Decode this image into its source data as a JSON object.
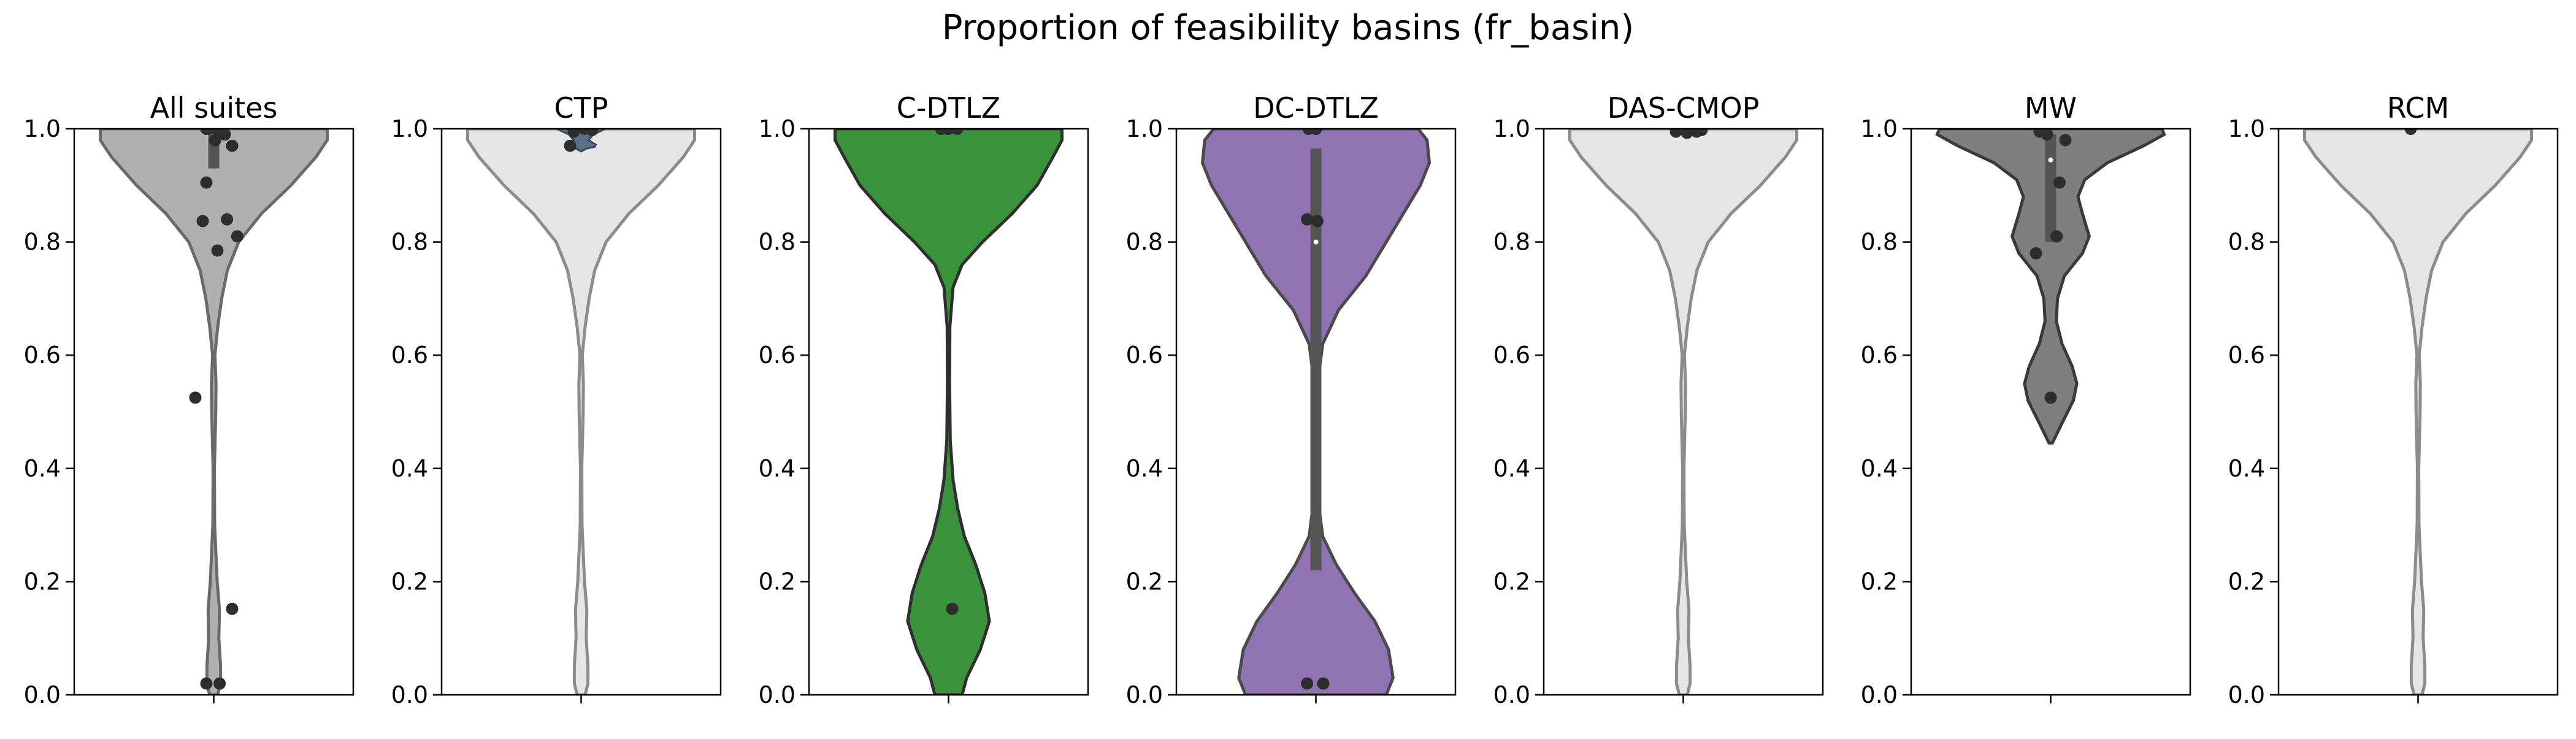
{
  "figure_title": "Proportion of feasibility basins (fr_basin)",
  "chart_data": {
    "type": "violin",
    "y_range": [
      0,
      1
    ],
    "y_ticks": [
      "0.0",
      "0.2",
      "0.4",
      "0.6",
      "0.8",
      "1.0"
    ],
    "panels": [
      {
        "title": "All suites",
        "color": "#b0b0b0",
        "edge": "#6a6a6a",
        "dim": false,
        "shape": [
          [
            0.0,
            0.035
          ],
          [
            0.02,
            0.06
          ],
          [
            0.05,
            0.06
          ],
          [
            0.1,
            0.045
          ],
          [
            0.15,
            0.05
          ],
          [
            0.2,
            0.03
          ],
          [
            0.3,
            0.008
          ],
          [
            0.4,
            0.006
          ],
          [
            0.5,
            0.018
          ],
          [
            0.55,
            0.02
          ],
          [
            0.6,
            0.01
          ],
          [
            0.65,
            0.035
          ],
          [
            0.7,
            0.07
          ],
          [
            0.75,
            0.12
          ],
          [
            0.8,
            0.22
          ],
          [
            0.85,
            0.42
          ],
          [
            0.9,
            0.68
          ],
          [
            0.95,
            0.9
          ],
          [
            0.98,
            1.0
          ],
          [
            1.0,
            1.0
          ]
        ],
        "box": {
          "q1": 0.93,
          "q3": 1.0,
          "median": 0.99
        },
        "points": [
          [
            -0.05,
            1.0
          ],
          [
            0.05,
            1.0
          ],
          [
            0.12,
            1.0
          ],
          [
            -0.1,
            1.0
          ],
          [
            0.15,
            0.99
          ],
          [
            0.02,
            0.98
          ],
          [
            0.25,
            0.97
          ],
          [
            -0.1,
            0.905
          ],
          [
            0.18,
            0.84
          ],
          [
            -0.15,
            0.837
          ],
          [
            0.32,
            0.81
          ],
          [
            0.05,
            0.785
          ],
          [
            -0.25,
            0.525
          ],
          [
            0.25,
            0.152
          ],
          [
            -0.1,
            0.02
          ],
          [
            0.08,
            0.02
          ]
        ]
      },
      {
        "title": "CTP",
        "color": "#e5e5e5",
        "edge": "#8c8c8c",
        "dim": true,
        "shape": [
          [
            0.0,
            0.035
          ],
          [
            0.02,
            0.06
          ],
          [
            0.05,
            0.06
          ],
          [
            0.1,
            0.045
          ],
          [
            0.15,
            0.05
          ],
          [
            0.2,
            0.03
          ],
          [
            0.3,
            0.008
          ],
          [
            0.4,
            0.006
          ],
          [
            0.5,
            0.018
          ],
          [
            0.55,
            0.02
          ],
          [
            0.6,
            0.01
          ],
          [
            0.65,
            0.035
          ],
          [
            0.7,
            0.07
          ],
          [
            0.75,
            0.12
          ],
          [
            0.8,
            0.22
          ],
          [
            0.85,
            0.42
          ],
          [
            0.9,
            0.68
          ],
          [
            0.95,
            0.9
          ],
          [
            0.98,
            1.0
          ],
          [
            1.0,
            1.0
          ]
        ],
        "inner": [
          [
            0.96,
            0.0
          ],
          [
            0.965,
            0.22
          ],
          [
            0.968,
            0.55
          ],
          [
            0.972,
            0.6
          ],
          [
            0.98,
            0.3
          ],
          [
            0.99,
            0.5
          ],
          [
            1.0,
            1.0
          ]
        ],
        "box": {
          "q1": 0.995,
          "q3": 1.0,
          "median": 0.998
        },
        "points": [
          [
            -0.1,
            0.995
          ],
          [
            0.05,
            1.0
          ],
          [
            -0.15,
            0.97
          ],
          [
            0.15,
            0.998
          ]
        ]
      },
      {
        "title": "C-DTLZ",
        "color": "#3a923a",
        "edge": "#2f2f2f",
        "dim": false,
        "shape": [
          [
            0.0,
            0.12
          ],
          [
            0.03,
            0.16
          ],
          [
            0.08,
            0.28
          ],
          [
            0.13,
            0.36
          ],
          [
            0.18,
            0.32
          ],
          [
            0.23,
            0.24
          ],
          [
            0.28,
            0.14
          ],
          [
            0.33,
            0.08
          ],
          [
            0.38,
            0.04
          ],
          [
            0.45,
            0.015
          ],
          [
            0.55,
            0.01
          ],
          [
            0.65,
            0.012
          ],
          [
            0.72,
            0.04
          ],
          [
            0.76,
            0.12
          ],
          [
            0.8,
            0.3
          ],
          [
            0.85,
            0.56
          ],
          [
            0.9,
            0.78
          ],
          [
            0.95,
            0.92
          ],
          [
            0.98,
            1.0
          ],
          [
            1.0,
            1.0
          ]
        ],
        "box": {
          "q1": 0.99,
          "q3": 1.0,
          "median": 1.0
        },
        "points": [
          [
            0.05,
            0.152
          ],
          [
            0.0,
            1.0
          ],
          [
            0.12,
            1.0
          ],
          [
            -0.1,
            1.0
          ]
        ]
      },
      {
        "title": "DC-DTLZ",
        "color": "#9172b2",
        "edge": "#4a4a4a",
        "dim": false,
        "shape": [
          [
            0.0,
            0.62
          ],
          [
            0.03,
            0.68
          ],
          [
            0.08,
            0.64
          ],
          [
            0.13,
            0.52
          ],
          [
            0.18,
            0.34
          ],
          [
            0.23,
            0.18
          ],
          [
            0.28,
            0.06
          ],
          [
            0.35,
            0.015
          ],
          [
            0.45,
            0.01
          ],
          [
            0.55,
            0.015
          ],
          [
            0.62,
            0.06
          ],
          [
            0.68,
            0.2
          ],
          [
            0.74,
            0.44
          ],
          [
            0.8,
            0.62
          ],
          [
            0.86,
            0.8
          ],
          [
            0.9,
            0.92
          ],
          [
            0.94,
            1.0
          ],
          [
            0.98,
            0.98
          ],
          [
            1.0,
            0.9
          ]
        ],
        "box": {
          "q1": 0.22,
          "q3": 0.965,
          "median": 0.8
        },
        "points": [
          [
            -0.12,
            0.02
          ],
          [
            0.1,
            0.02
          ],
          [
            -0.12,
            0.84
          ],
          [
            0.02,
            0.837
          ],
          [
            0.0,
            1.0
          ],
          [
            -0.1,
            1.0
          ]
        ]
      },
      {
        "title": "DAS-CMOP",
        "color": "#e5e5e5",
        "edge": "#8c8c8c",
        "dim": true,
        "shape": [
          [
            0.0,
            0.035
          ],
          [
            0.02,
            0.06
          ],
          [
            0.05,
            0.06
          ],
          [
            0.1,
            0.045
          ],
          [
            0.15,
            0.05
          ],
          [
            0.2,
            0.03
          ],
          [
            0.3,
            0.008
          ],
          [
            0.4,
            0.006
          ],
          [
            0.5,
            0.018
          ],
          [
            0.55,
            0.02
          ],
          [
            0.6,
            0.01
          ],
          [
            0.65,
            0.035
          ],
          [
            0.7,
            0.07
          ],
          [
            0.75,
            0.12
          ],
          [
            0.8,
            0.22
          ],
          [
            0.85,
            0.42
          ],
          [
            0.9,
            0.68
          ],
          [
            0.95,
            0.9
          ],
          [
            0.98,
            1.0
          ],
          [
            1.0,
            1.0
          ]
        ],
        "box": {
          "q1": 0.995,
          "q3": 1.0,
          "median": 0.998
        },
        "points": [
          [
            -0.1,
            0.995
          ],
          [
            0.05,
            0.993
          ],
          [
            0.18,
            0.995
          ],
          [
            0.25,
            0.998
          ]
        ]
      },
      {
        "title": "MW",
        "color": "#7f7f7f",
        "edge": "#3a3a3a",
        "dim": false,
        "shape": [
          [
            0.445,
            0.015
          ],
          [
            0.48,
            0.1
          ],
          [
            0.52,
            0.2
          ],
          [
            0.55,
            0.23
          ],
          [
            0.58,
            0.19
          ],
          [
            0.62,
            0.1
          ],
          [
            0.66,
            0.05
          ],
          [
            0.7,
            0.06
          ],
          [
            0.74,
            0.12
          ],
          [
            0.78,
            0.28
          ],
          [
            0.81,
            0.34
          ],
          [
            0.85,
            0.28
          ],
          [
            0.88,
            0.24
          ],
          [
            0.91,
            0.3
          ],
          [
            0.94,
            0.5
          ],
          [
            0.97,
            0.82
          ],
          [
            0.99,
            1.0
          ],
          [
            1.0,
            0.98
          ]
        ],
        "box": {
          "q1": 0.8,
          "q3": 0.99,
          "median": 0.945
        },
        "points": [
          [
            -0.15,
            0.995
          ],
          [
            -0.05,
            0.99
          ],
          [
            0.2,
            0.98
          ],
          [
            0.12,
            0.905
          ],
          [
            0.08,
            0.81
          ],
          [
            -0.2,
            0.78
          ],
          [
            0.0,
            0.525
          ]
        ]
      },
      {
        "title": "RCM",
        "color": "#e5e5e5",
        "edge": "#8c8c8c",
        "dim": true,
        "shape": [
          [
            0.0,
            0.035
          ],
          [
            0.02,
            0.06
          ],
          [
            0.05,
            0.06
          ],
          [
            0.1,
            0.045
          ],
          [
            0.15,
            0.05
          ],
          [
            0.2,
            0.03
          ],
          [
            0.3,
            0.008
          ],
          [
            0.4,
            0.006
          ],
          [
            0.5,
            0.018
          ],
          [
            0.55,
            0.02
          ],
          [
            0.6,
            0.01
          ],
          [
            0.65,
            0.035
          ],
          [
            0.7,
            0.07
          ],
          [
            0.75,
            0.12
          ],
          [
            0.8,
            0.22
          ],
          [
            0.85,
            0.42
          ],
          [
            0.9,
            0.68
          ],
          [
            0.95,
            0.9
          ],
          [
            0.98,
            1.0
          ],
          [
            1.0,
            1.0
          ]
        ],
        "box": null,
        "points": [
          [
            -0.1,
            1.0
          ]
        ]
      }
    ]
  }
}
